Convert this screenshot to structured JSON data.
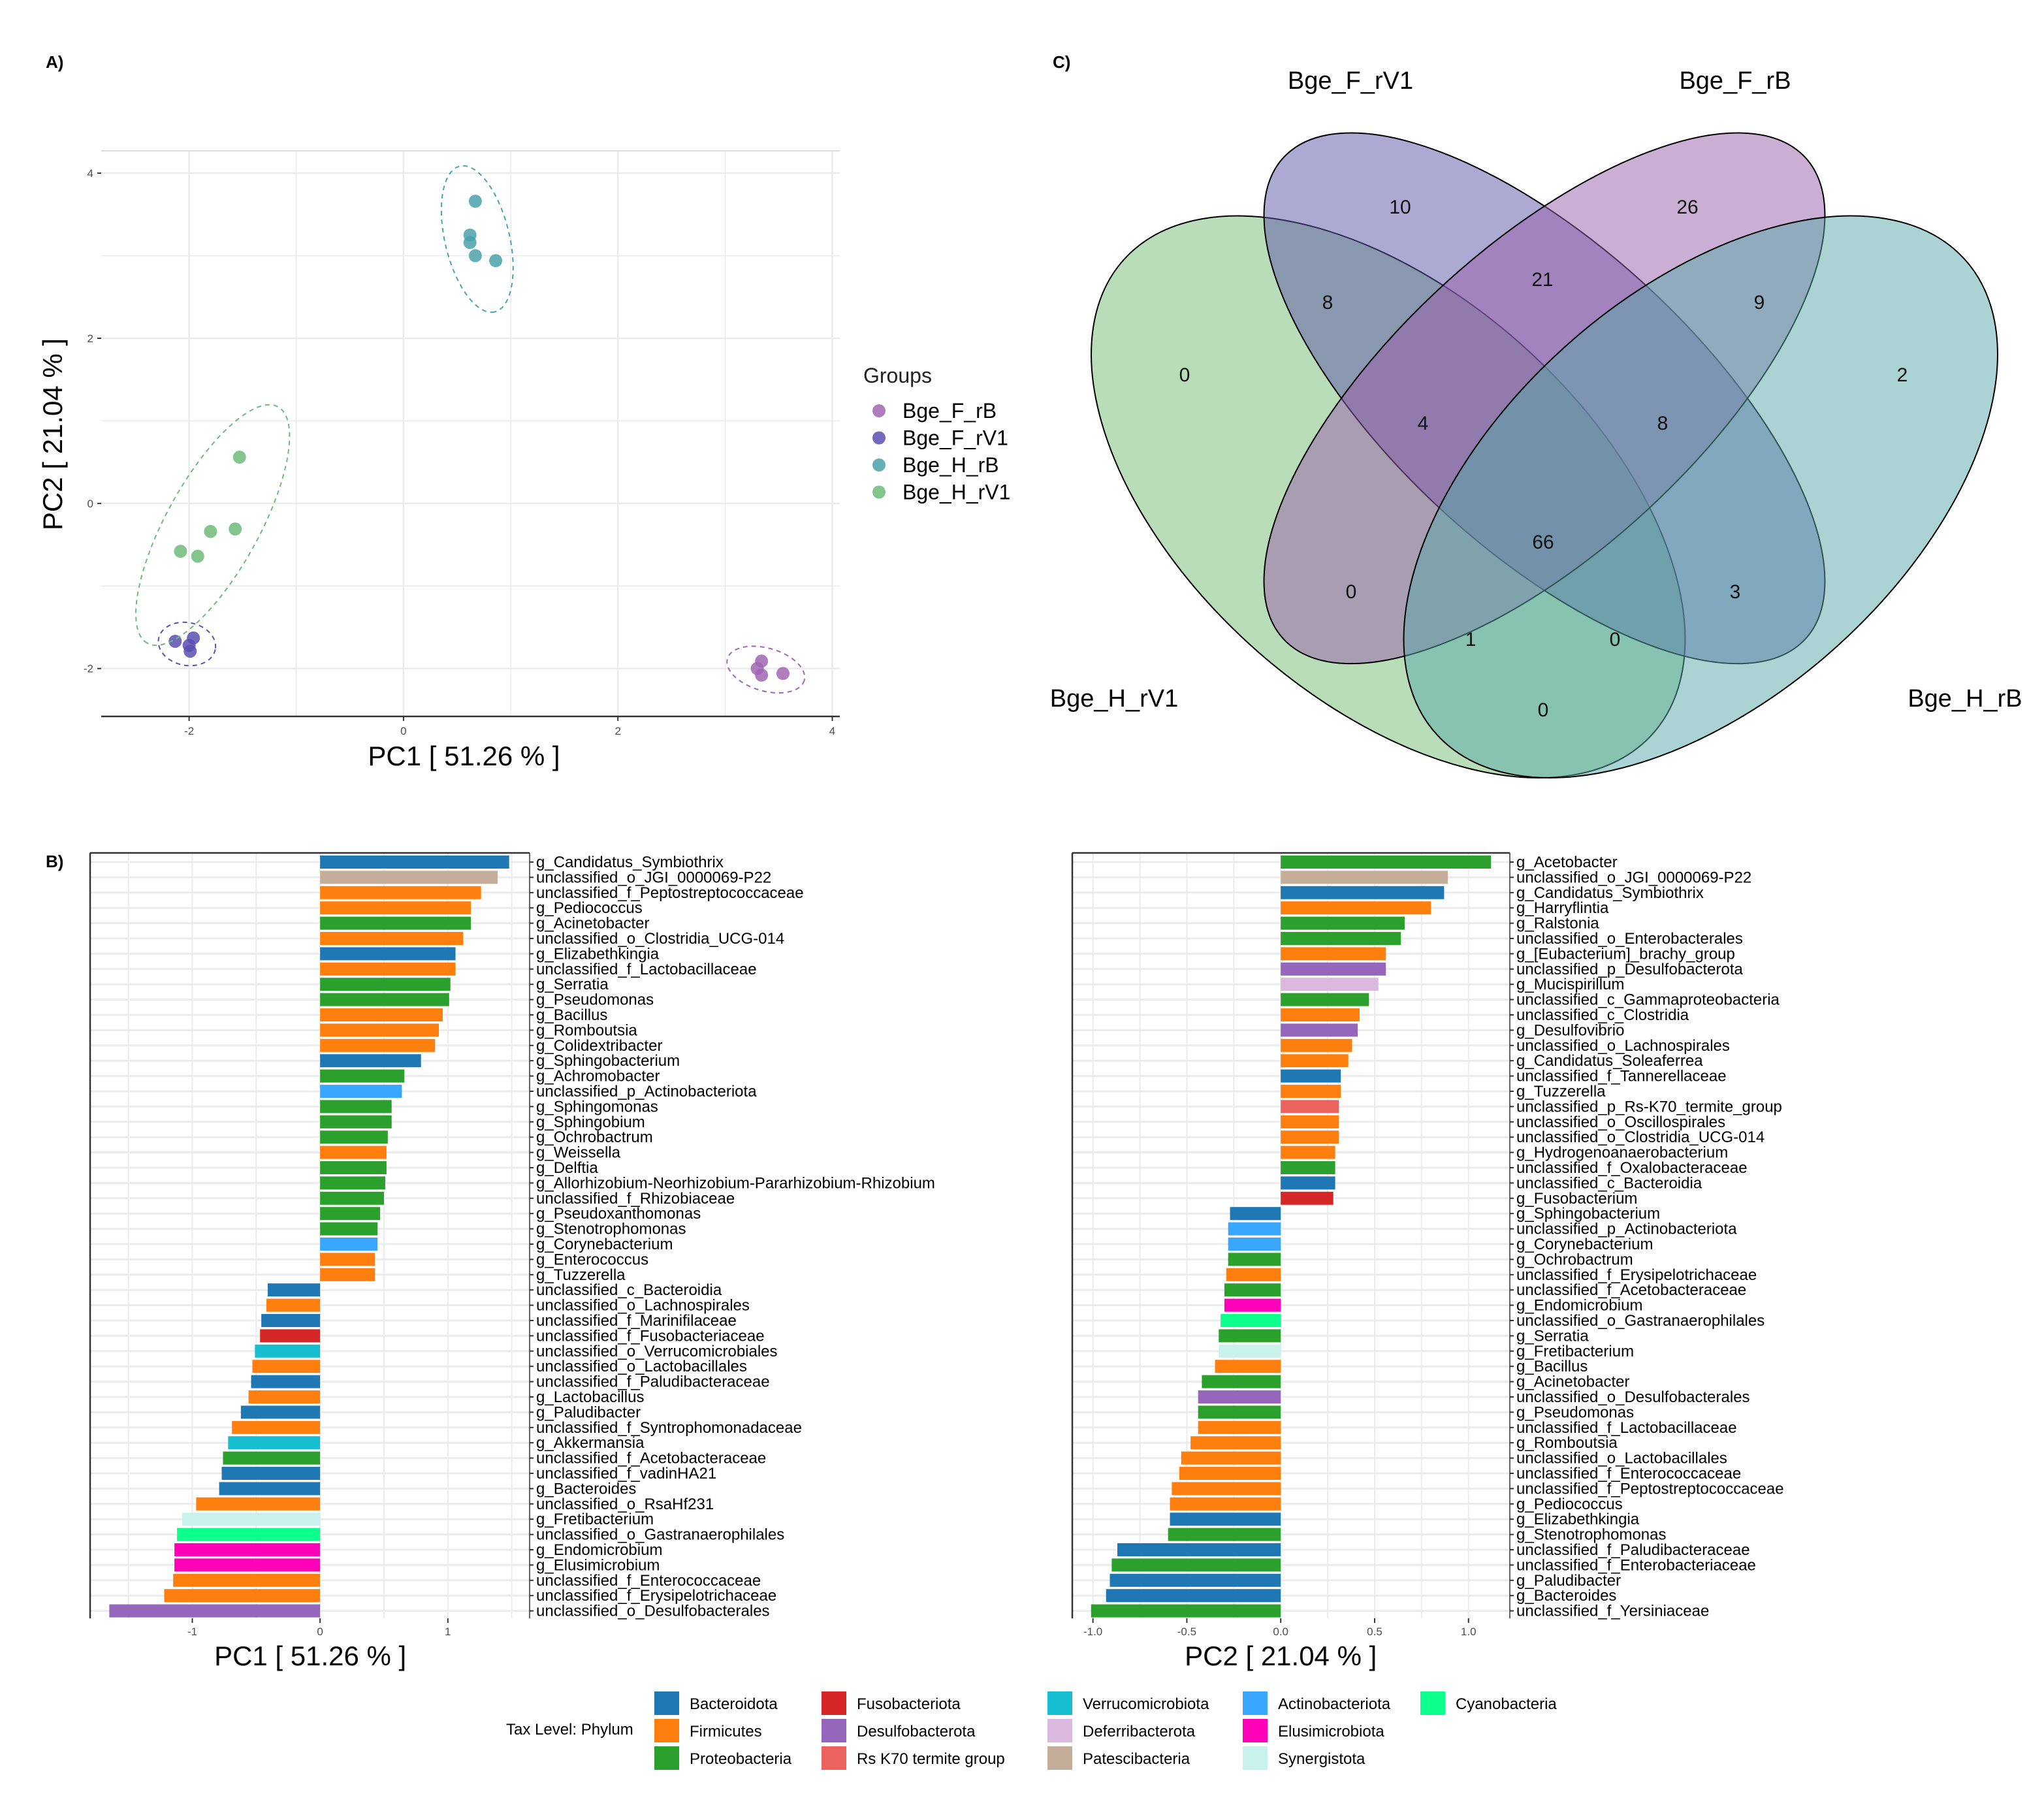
{
  "panel_labels": {
    "a": "A)",
    "b": "B)",
    "c": "C)"
  },
  "chart_data": [
    {
      "type": "scatter",
      "xlabel": "PC1 [ 51.26 % ]",
      "ylabel": "PC2 [ 21.04 % ]",
      "xlim": [
        -2.82,
        4.07
      ],
      "ylim": [
        -2.58,
        4.27
      ],
      "xticks": [
        "-2",
        "0",
        "2",
        "4"
      ],
      "yticks": [
        "-2",
        "0",
        "2",
        "4"
      ],
      "grid": true,
      "legend": {
        "title": "Groups",
        "placement": "right"
      },
      "series": [
        {
          "name": "Bge_F_rB",
          "color": "#a066b3",
          "points": [
            [
              3.34,
              -1.91
            ],
            [
              3.3,
              -2.0
            ],
            [
              3.34,
              -2.08
            ],
            [
              3.54,
              -2.06
            ]
          ]
        },
        {
          "name": "Bge_F_rV1",
          "color": "#5a4fb2",
          "points": [
            [
              -2.13,
              -1.67
            ],
            [
              -1.96,
              -1.63
            ],
            [
              -1.99,
              -1.79
            ],
            [
              -2.0,
              -1.72
            ]
          ]
        },
        {
          "name": "Bge_H_rB",
          "color": "#4aa2aa",
          "points": [
            [
              0.67,
              3.66
            ],
            [
              0.62,
              3.25
            ],
            [
              0.62,
              3.16
            ],
            [
              0.67,
              3.0
            ],
            [
              0.86,
              2.94
            ]
          ]
        },
        {
          "name": "Bge_H_rV1",
          "color": "#6dbb78",
          "points": [
            [
              -1.53,
              0.56
            ],
            [
              -1.8,
              -0.34
            ],
            [
              -1.57,
              -0.31
            ],
            [
              -2.08,
              -0.58
            ],
            [
              -1.92,
              -0.64
            ]
          ]
        }
      ]
    },
    {
      "type": "bar",
      "orientation": "horizontal",
      "xlabel": "PC1 [ 51.26 % ]",
      "xlim": [
        -1.8,
        1.64
      ],
      "xticks": [
        "-1",
        "0",
        "1"
      ],
      "grid": true,
      "bars": [
        {
          "label": "g_Candidatus_Symbiothrix",
          "value": 1.48,
          "phylum": "Bacteroidota"
        },
        {
          "label": "unclassified_o_JGI_0000069-P22",
          "value": 1.39,
          "phylum": "Patescibacteria"
        },
        {
          "label": "unclassified_f_Peptostreptococcaceae",
          "value": 1.26,
          "phylum": "Firmicutes"
        },
        {
          "label": "g_Pediococcus",
          "value": 1.18,
          "phylum": "Firmicutes"
        },
        {
          "label": "g_Acinetobacter",
          "value": 1.18,
          "phylum": "Proteobacteria"
        },
        {
          "label": "unclassified_o_Clostridia_UCG-014",
          "value": 1.12,
          "phylum": "Firmicutes"
        },
        {
          "label": "g_Elizabethkingia",
          "value": 1.06,
          "phylum": "Bacteroidota"
        },
        {
          "label": "unclassified_f_Lactobacillaceae",
          "value": 1.06,
          "phylum": "Firmicutes"
        },
        {
          "label": "g_Serratia",
          "value": 1.02,
          "phylum": "Proteobacteria"
        },
        {
          "label": "g_Pseudomonas",
          "value": 1.01,
          "phylum": "Proteobacteria"
        },
        {
          "label": "g_Bacillus",
          "value": 0.96,
          "phylum": "Firmicutes"
        },
        {
          "label": "g_Romboutsia",
          "value": 0.93,
          "phylum": "Firmicutes"
        },
        {
          "label": "g_Colidextribacter",
          "value": 0.9,
          "phylum": "Firmicutes"
        },
        {
          "label": "g_Sphingobacterium",
          "value": 0.79,
          "phylum": "Bacteroidota"
        },
        {
          "label": "g_Achromobacter",
          "value": 0.66,
          "phylum": "Proteobacteria"
        },
        {
          "label": "unclassified_p_Actinobacteriota",
          "value": 0.64,
          "phylum": "Actinobacteriota"
        },
        {
          "label": "g_Sphingomonas",
          "value": 0.56,
          "phylum": "Proteobacteria"
        },
        {
          "label": "g_Sphingobium",
          "value": 0.56,
          "phylum": "Proteobacteria"
        },
        {
          "label": "g_Ochrobactrum",
          "value": 0.53,
          "phylum": "Proteobacteria"
        },
        {
          "label": "g_Weissella",
          "value": 0.52,
          "phylum": "Firmicutes"
        },
        {
          "label": "g_Delftia",
          "value": 0.52,
          "phylum": "Proteobacteria"
        },
        {
          "label": "g_Allorhizobium-Neorhizobium-Pararhizobium-Rhizobium",
          "value": 0.51,
          "phylum": "Proteobacteria"
        },
        {
          "label": "unclassified_f_Rhizobiaceae",
          "value": 0.5,
          "phylum": "Proteobacteria"
        },
        {
          "label": "g_Pseudoxanthomonas",
          "value": 0.47,
          "phylum": "Proteobacteria"
        },
        {
          "label": "g_Stenotrophomonas",
          "value": 0.45,
          "phylum": "Proteobacteria"
        },
        {
          "label": "g_Corynebacterium",
          "value": 0.45,
          "phylum": "Actinobacteriota"
        },
        {
          "label": "g_Enterococcus",
          "value": 0.43,
          "phylum": "Firmicutes"
        },
        {
          "label": "g_Tuzzerella",
          "value": 0.43,
          "phylum": "Firmicutes"
        },
        {
          "label": "unclassified_c_Bacteroidia",
          "value": -0.41,
          "phylum": "Bacteroidota"
        },
        {
          "label": "unclassified_o_Lachnospirales",
          "value": -0.42,
          "phylum": "Firmicutes"
        },
        {
          "label": "unclassified_f_Marinifilaceae",
          "value": -0.46,
          "phylum": "Bacteroidota"
        },
        {
          "label": "unclassified_f_Fusobacteriaceae",
          "value": -0.47,
          "phylum": "Fusobacteriota"
        },
        {
          "label": "unclassified_o_Verrucomicrobiales",
          "value": -0.51,
          "phylum": "Verrucomicrobiota"
        },
        {
          "label": "unclassified_o_Lactobacillales",
          "value": -0.53,
          "phylum": "Firmicutes"
        },
        {
          "label": "unclassified_f_Paludibacteraceae",
          "value": -0.54,
          "phylum": "Bacteroidota"
        },
        {
          "label": "g_Lactobacillus",
          "value": -0.56,
          "phylum": "Firmicutes"
        },
        {
          "label": "g_Paludibacter",
          "value": -0.62,
          "phylum": "Bacteroidota"
        },
        {
          "label": "unclassified_f_Syntrophomonadaceae",
          "value": -0.69,
          "phylum": "Firmicutes"
        },
        {
          "label": "g_Akkermansia",
          "value": -0.72,
          "phylum": "Verrucomicrobiota"
        },
        {
          "label": "unclassified_f_Acetobacteraceae",
          "value": -0.76,
          "phylum": "Proteobacteria"
        },
        {
          "label": "unclassified_f_vadinHA21",
          "value": -0.77,
          "phylum": "Bacteroidota"
        },
        {
          "label": "g_Bacteroides",
          "value": -0.79,
          "phylum": "Bacteroidota"
        },
        {
          "label": "unclassified_o_RsaHf231",
          "value": -0.97,
          "phylum": "Firmicutes"
        },
        {
          "label": "g_Fretibacterium",
          "value": -1.08,
          "phylum": "Synergistota"
        },
        {
          "label": "unclassified_o_Gastranaerophilales",
          "value": -1.12,
          "phylum": "Cyanobacteria"
        },
        {
          "label": "g_Endomicrobium",
          "value": -1.14,
          "phylum": "Elusimicrobiota"
        },
        {
          "label": "g_Elusimicrobium",
          "value": -1.14,
          "phylum": "Elusimicrobiota"
        },
        {
          "label": "unclassified_f_Enterococcaceae",
          "value": -1.15,
          "phylum": "Firmicutes"
        },
        {
          "label": "unclassified_f_Erysipelotrichaceae",
          "value": -1.22,
          "phylum": "Firmicutes"
        },
        {
          "label": "unclassified_o_Desulfobacterales",
          "value": -1.65,
          "phylum": "Desulfobacterota"
        }
      ]
    },
    {
      "type": "bar",
      "orientation": "horizontal",
      "xlabel": "PC2 [ 21.04 % ]",
      "xlim": [
        -1.11,
        1.22
      ],
      "xticks": [
        "-1.0",
        "-0.5",
        "0.0",
        "0.5",
        "1.0"
      ],
      "grid": true,
      "bars": [
        {
          "label": "g_Acetobacter",
          "value": 1.12,
          "phylum": "Proteobacteria"
        },
        {
          "label": "unclassified_o_JGI_0000069-P22",
          "value": 0.89,
          "phylum": "Patescibacteria"
        },
        {
          "label": "g_Candidatus_Symbiothrix",
          "value": 0.87,
          "phylum": "Bacteroidota"
        },
        {
          "label": "g_Harryflintia",
          "value": 0.8,
          "phylum": "Firmicutes"
        },
        {
          "label": "g_Ralstonia",
          "value": 0.66,
          "phylum": "Proteobacteria"
        },
        {
          "label": "unclassified_o_Enterobacterales",
          "value": 0.64,
          "phylum": "Proteobacteria"
        },
        {
          "label": "g_[Eubacterium]_brachy_group",
          "value": 0.56,
          "phylum": "Firmicutes"
        },
        {
          "label": "unclassified_p_Desulfobacterota",
          "value": 0.56,
          "phylum": "Desulfobacterota"
        },
        {
          "label": "g_Mucispirillum",
          "value": 0.52,
          "phylum": "Deferribacterota"
        },
        {
          "label": "unclassified_c_Gammaproteobacteria",
          "value": 0.47,
          "phylum": "Proteobacteria"
        },
        {
          "label": "unclassified_c_Clostridia",
          "value": 0.42,
          "phylum": "Firmicutes"
        },
        {
          "label": "g_Desulfovibrio",
          "value": 0.41,
          "phylum": "Desulfobacterota"
        },
        {
          "label": "unclassified_o_Lachnospirales",
          "value": 0.38,
          "phylum": "Firmicutes"
        },
        {
          "label": "g_Candidatus_Soleaferrea",
          "value": 0.36,
          "phylum": "Firmicutes"
        },
        {
          "label": "unclassified_f_Tannerellaceae",
          "value": 0.32,
          "phylum": "Bacteroidota"
        },
        {
          "label": "g_Tuzzerella",
          "value": 0.32,
          "phylum": "Firmicutes"
        },
        {
          "label": "unclassified_p_Rs-K70_termite_group",
          "value": 0.31,
          "phylum": "Rs K70 termite group"
        },
        {
          "label": "unclassified_o_Oscillospirales",
          "value": 0.31,
          "phylum": "Firmicutes"
        },
        {
          "label": "unclassified_o_Clostridia_UCG-014",
          "value": 0.31,
          "phylum": "Firmicutes"
        },
        {
          "label": "g_Hydrogenoanaerobacterium",
          "value": 0.29,
          "phylum": "Firmicutes"
        },
        {
          "label": "unclassified_f_Oxalobacteraceae",
          "value": 0.29,
          "phylum": "Proteobacteria"
        },
        {
          "label": "unclassified_c_Bacteroidia",
          "value": 0.29,
          "phylum": "Bacteroidota"
        },
        {
          "label": "g_Fusobacterium",
          "value": 0.28,
          "phylum": "Fusobacteriota"
        },
        {
          "label": "g_Sphingobacterium",
          "value": -0.27,
          "phylum": "Bacteroidota"
        },
        {
          "label": "unclassified_p_Actinobacteriota",
          "value": -0.28,
          "phylum": "Actinobacteriota"
        },
        {
          "label": "g_Corynebacterium",
          "value": -0.28,
          "phylum": "Actinobacteriota"
        },
        {
          "label": "g_Ochrobactrum",
          "value": -0.28,
          "phylum": "Proteobacteria"
        },
        {
          "label": "unclassified_f_Erysipelotrichaceae",
          "value": -0.29,
          "phylum": "Firmicutes"
        },
        {
          "label": "unclassified_f_Acetobacteraceae",
          "value": -0.3,
          "phylum": "Proteobacteria"
        },
        {
          "label": "g_Endomicrobium",
          "value": -0.3,
          "phylum": "Elusimicrobiota"
        },
        {
          "label": "unclassified_o_Gastranaerophilales",
          "value": -0.32,
          "phylum": "Cyanobacteria"
        },
        {
          "label": "g_Serratia",
          "value": -0.33,
          "phylum": "Proteobacteria"
        },
        {
          "label": "g_Fretibacterium",
          "value": -0.33,
          "phylum": "Synergistota"
        },
        {
          "label": "g_Bacillus",
          "value": -0.35,
          "phylum": "Firmicutes"
        },
        {
          "label": "g_Acinetobacter",
          "value": -0.42,
          "phylum": "Proteobacteria"
        },
        {
          "label": "unclassified_o_Desulfobacterales",
          "value": -0.44,
          "phylum": "Desulfobacterota"
        },
        {
          "label": "g_Pseudomonas",
          "value": -0.44,
          "phylum": "Proteobacteria"
        },
        {
          "label": "unclassified_f_Lactobacillaceae",
          "value": -0.44,
          "phylum": "Firmicutes"
        },
        {
          "label": "g_Romboutsia",
          "value": -0.48,
          "phylum": "Firmicutes"
        },
        {
          "label": "unclassified_o_Lactobacillales",
          "value": -0.53,
          "phylum": "Firmicutes"
        },
        {
          "label": "unclassified_f_Enterococcaceae",
          "value": -0.54,
          "phylum": "Firmicutes"
        },
        {
          "label": "unclassified_f_Peptostreptococcaceae",
          "value": -0.58,
          "phylum": "Firmicutes"
        },
        {
          "label": "g_Pediococcus",
          "value": -0.59,
          "phylum": "Firmicutes"
        },
        {
          "label": "g_Elizabethkingia",
          "value": -0.59,
          "phylum": "Bacteroidota"
        },
        {
          "label": "g_Stenotrophomonas",
          "value": -0.6,
          "phylum": "Proteobacteria"
        },
        {
          "label": "unclassified_f_Paludibacteraceae",
          "value": -0.87,
          "phylum": "Bacteroidota"
        },
        {
          "label": "unclassified_f_Enterobacteriaceae",
          "value": -0.9,
          "phylum": "Proteobacteria"
        },
        {
          "label": "g_Paludibacter",
          "value": -0.91,
          "phylum": "Bacteroidota"
        },
        {
          "label": "g_Bacteroides",
          "value": -0.93,
          "phylum": "Bacteroidota"
        },
        {
          "label": "unclassified_f_Yersiniaceae",
          "value": -1.01,
          "phylum": "Proteobacteria"
        }
      ]
    },
    {
      "type": "venn",
      "sets": [
        {
          "name": "Bge_H_rV1",
          "color": "#73b973"
        },
        {
          "name": "Bge_F_rV1",
          "color": "#5953a5"
        },
        {
          "name": "Bge_F_rB",
          "color": "#975da9"
        },
        {
          "name": "Bge_H_rB",
          "color": "#57a7a7"
        }
      ],
      "regions": [
        {
          "sets": [
            "Bge_F_rV1"
          ],
          "count": "10"
        },
        {
          "sets": [
            "Bge_F_rB"
          ],
          "count": "26"
        },
        {
          "sets": [
            "Bge_F_rV1",
            "Bge_F_rB"
          ],
          "count": "21"
        },
        {
          "sets": [
            "Bge_H_rV1",
            "Bge_F_rV1"
          ],
          "count": "8"
        },
        {
          "sets": [
            "Bge_F_rB",
            "Bge_H_rB"
          ],
          "count": "9"
        },
        {
          "sets": [
            "Bge_H_rV1"
          ],
          "count": "0"
        },
        {
          "sets": [
            "Bge_H_rB"
          ],
          "count": "2"
        },
        {
          "sets": [
            "Bge_H_rV1",
            "Bge_F_rV1",
            "Bge_F_rB"
          ],
          "count": "4"
        },
        {
          "sets": [
            "Bge_F_rV1",
            "Bge_F_rB",
            "Bge_H_rB"
          ],
          "count": "8"
        },
        {
          "sets": [
            "Bge_H_rV1",
            "Bge_F_rV1",
            "Bge_F_rB",
            "Bge_H_rB"
          ],
          "count": "66"
        },
        {
          "sets": [
            "Bge_H_rV1",
            "Bge_F_rB"
          ],
          "count": "0"
        },
        {
          "sets": [
            "Bge_F_rV1",
            "Bge_H_rB"
          ],
          "count": "3"
        },
        {
          "sets": [
            "Bge_H_rV1",
            "Bge_F_rB",
            "Bge_H_rB"
          ],
          "count": "1"
        },
        {
          "sets": [
            "Bge_H_rV1",
            "Bge_F_rV1",
            "Bge_H_rB"
          ],
          "count": "0"
        },
        {
          "sets": [
            "Bge_H_rV1",
            "Bge_H_rB"
          ],
          "count": "0"
        }
      ]
    }
  ],
  "phylum_legend": {
    "title": "Tax Level: Phylum",
    "columns": [
      [
        {
          "name": "Bacteroidota",
          "color": "#1f77b4"
        },
        {
          "name": "Firmicutes",
          "color": "#ff7f0e"
        },
        {
          "name": "Proteobacteria",
          "color": "#2ca02c"
        }
      ],
      [
        {
          "name": "Fusobacteriota",
          "color": "#d62728"
        },
        {
          "name": "Desulfobacterota",
          "color": "#9467bd"
        },
        {
          "name": "Rs K70 termite group",
          "color": "#ec625c"
        }
      ],
      [
        {
          "name": "Verrucomicrobiota",
          "color": "#17becf"
        },
        {
          "name": "Deferribacterota",
          "color": "#dbb8de"
        },
        {
          "name": "Patescibacteria",
          "color": "#c4ae9a"
        }
      ],
      [
        {
          "name": "Actinobacteriota",
          "color": "#39a7ff"
        },
        {
          "name": "Elusimicrobiota",
          "color": "#ff00b8"
        },
        {
          "name": "Synergistota",
          "color": "#caf2ec"
        }
      ],
      [
        {
          "name": "Cyanobacteria",
          "color": "#0dff8c"
        }
      ]
    ]
  }
}
